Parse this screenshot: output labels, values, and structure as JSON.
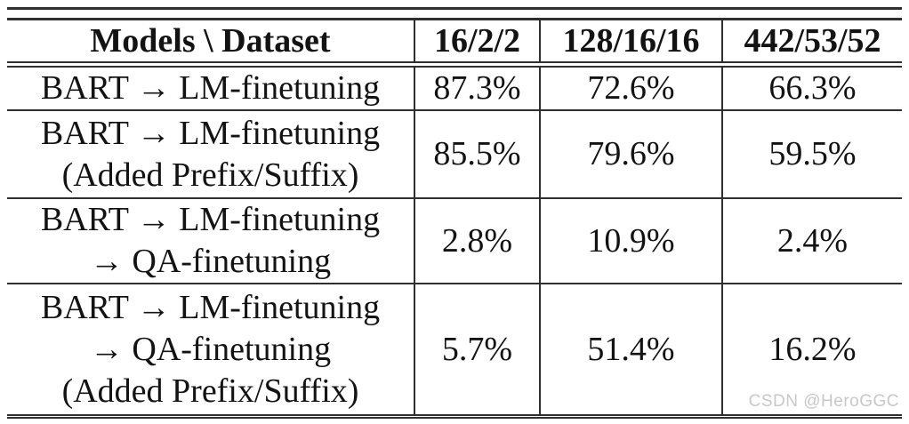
{
  "colors": {
    "text": "#131313",
    "rule": "#2f2f2f",
    "watermark": "#c6c8ca",
    "background": "#ffffff"
  },
  "table": {
    "header": [
      "Models \\ Dataset",
      "16/2/2",
      "128/16/16",
      "442/53/52"
    ],
    "rows": [
      {
        "model_lines": [
          "BART → LM-finetuning"
        ],
        "values": [
          "87.3%",
          "72.6%",
          "66.3%"
        ]
      },
      {
        "model_lines": [
          "BART → LM-finetuning",
          "(Added Prefix/Suffix)"
        ],
        "values": [
          "85.5%",
          "79.6%",
          "59.5%"
        ]
      },
      {
        "model_lines": [
          "BART → LM-finetuning",
          "→ QA-finetuning"
        ],
        "values": [
          "2.8%",
          "10.9%",
          "2.4%"
        ]
      },
      {
        "model_lines": [
          "BART → LM-finetuning",
          "→ QA-finetuning",
          "(Added Prefix/Suffix)"
        ],
        "values": [
          "5.7%",
          "51.4%",
          "16.2%"
        ]
      }
    ]
  },
  "watermark": {
    "text": "CSDN @HeroGGC"
  }
}
